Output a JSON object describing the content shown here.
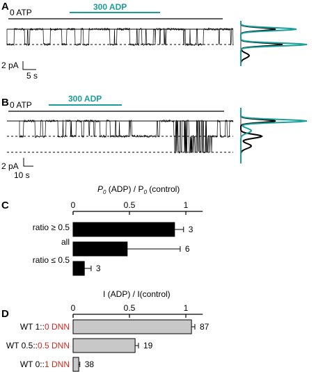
{
  "panels": {
    "A": {
      "letter": "A",
      "condition_label": "0 ATP",
      "drug_label": "300 ADP",
      "scale_current": "2 pA",
      "scale_time": "5 s"
    },
    "B": {
      "letter": "B",
      "condition_label": "0 ATP",
      "drug_label": "300 ADP",
      "scale_current": "2 pA",
      "scale_time": "10 s"
    },
    "C": {
      "letter": "C",
      "xlabel_pre": "P",
      "xlabel_sub1": "0",
      "xlabel_mid": " (ADP) / P",
      "xlabel_sub2": "0",
      "xlabel_post": " (control)"
    },
    "D": {
      "letter": "D",
      "xlabel": "I (ADP) / I(control)"
    }
  },
  "colors": {
    "teal": "#1a9e9a",
    "red": "#d7261e",
    "bar_black": "#000000",
    "bar_gray": "#c8c8c8"
  },
  "chart_data": [
    {
      "type": "bar",
      "orientation": "horizontal",
      "panel": "C",
      "categories": [
        "ratio ≥ 0.5",
        "all",
        "ratio ≤ 0.5"
      ],
      "values": [
        0.9,
        0.48,
        0.1
      ],
      "errors": [
        0.08,
        0.47,
        0.06
      ],
      "n_labels": [
        "3",
        "6",
        "3"
      ],
      "ticks": [
        "0",
        "0.5",
        "1"
      ],
      "xlim": [
        0,
        1.15
      ]
    },
    {
      "type": "bar",
      "orientation": "horizontal",
      "panel": "D",
      "categories": [
        {
          "black": "WT 1::",
          "red": "0 DNN"
        },
        {
          "black": "WT 0.5::",
          "red": "0.5 DNN"
        },
        {
          "black": "WT 0::",
          "red": "1 DNN"
        }
      ],
      "values": [
        1.05,
        0.55,
        0.05
      ],
      "errors": [
        0.03,
        0.03,
        0.01
      ],
      "n_labels": [
        "87",
        "19",
        "38"
      ],
      "ticks": [
        "0",
        "0.5",
        "1"
      ],
      "xlim": [
        0,
        1.15
      ]
    }
  ]
}
